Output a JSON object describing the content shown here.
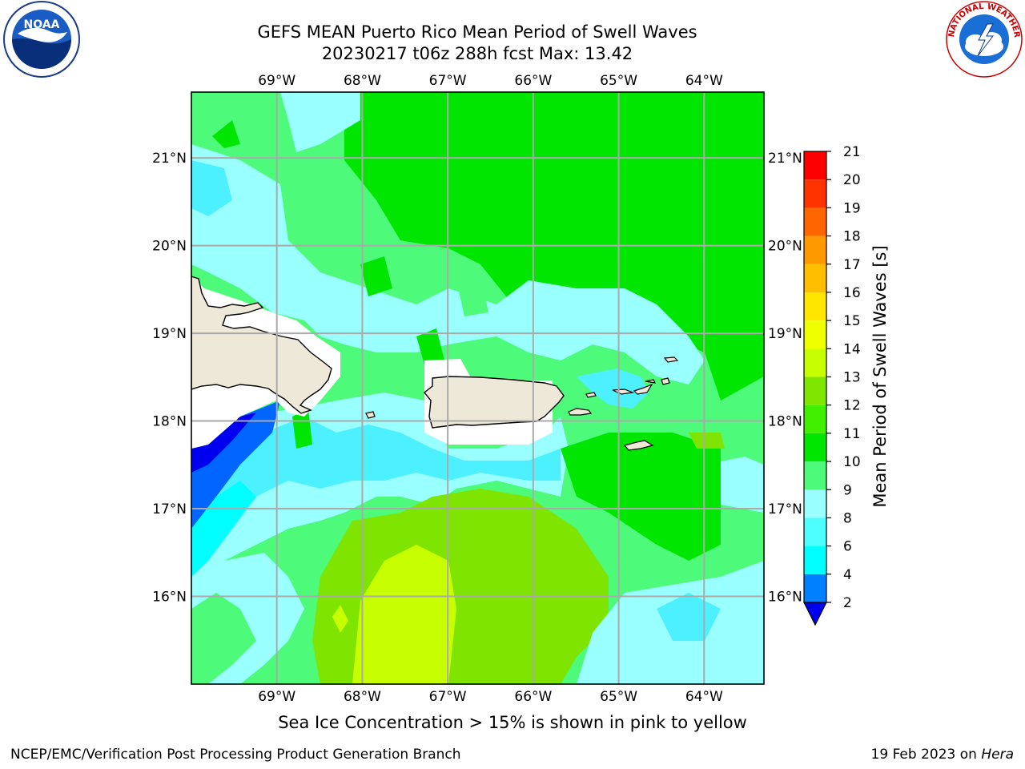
{
  "title_line1": "GEFS MEAN Puerto Rico Mean Period of Swell Waves",
  "title_line2": "20230217 t06z 288h fcst   Max: 13.42",
  "logos": {
    "left": "noaa-logo",
    "right": "nws-logo",
    "left_text": "NOAA",
    "right_text": "NATIONAL WEATHER SERVICE"
  },
  "map": {
    "lon_labels": [
      "69°W",
      "68°W",
      "67°W",
      "66°W",
      "65°W",
      "64°W"
    ],
    "lon_values": [
      -69,
      -68,
      -67,
      -66,
      -65,
      -64
    ],
    "lat_labels": [
      "21°N",
      "20°N",
      "19°N",
      "18°N",
      "17°N",
      "16°N"
    ],
    "lat_values": [
      21,
      20,
      19,
      18,
      17,
      16
    ],
    "extent": {
      "lon_min": -70.0,
      "lon_max": -63.3,
      "lat_min": 15.0,
      "lat_max": 21.75
    },
    "land_color": "#ede8d8",
    "field_colors": {
      "green": "#00e600",
      "light_green": "#4dfa7a",
      "pale_cyan": "#99ffff",
      "cyan": "#4df0ff",
      "yellow_green": "#c8ff00",
      "lime": "#7fe400",
      "blue": "#0066ff",
      "dark_blue": "#0000ee"
    }
  },
  "colorbar": {
    "label": "Mean Period of Swell Waves [s]",
    "ticks": [
      "2",
      "4",
      "6",
      "8",
      "9",
      "10",
      "11",
      "12",
      "13",
      "14",
      "15",
      "16",
      "17",
      "18",
      "19",
      "20",
      "21"
    ],
    "colors": [
      "#0000ee",
      "#0080ff",
      "#00ffff",
      "#4dffff",
      "#99ffff",
      "#4dfa7a",
      "#00e600",
      "#40f000",
      "#80e600",
      "#c8ff00",
      "#eeff00",
      "#ffe600",
      "#ffbf00",
      "#ff9900",
      "#ff6600",
      "#ff3300",
      "#ff0000"
    ]
  },
  "caption": "Sea Ice Concentration > 15% is shown in pink to yellow",
  "footer_left": "NCEP/EMC/Verification Post Processing Product Generation Branch",
  "footer_right_date": "19 Feb 2023 on ",
  "footer_right_host": "Hera"
}
